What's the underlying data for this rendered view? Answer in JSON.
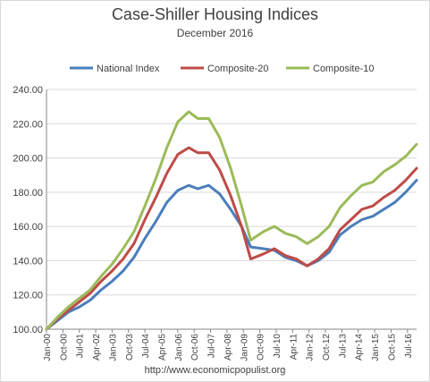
{
  "chart_data": {
    "type": "line",
    "title": "Case-Shiller Housing Indices",
    "subtitle": "December  2016",
    "source": "http://www.economicpopulist.org",
    "xlabel": "",
    "ylabel": "",
    "ylim": [
      100,
      240
    ],
    "yticks": [
      "100.00",
      "120.00",
      "140.00",
      "160.00",
      "180.00",
      "200.00",
      "220.00",
      "240.00"
    ],
    "xticks": [
      "Jan-00",
      "Oct-00",
      "Jul-01",
      "Apr-02",
      "Jan-03",
      "Oct-03",
      "Jul-04",
      "Apr-05",
      "Jan-06",
      "Oct-06",
      "Jul-07",
      "Apr-08",
      "Jan-09",
      "Oct-09",
      "Jul-10",
      "Apr-11",
      "Jan-12",
      "Oct-12",
      "Jul-13",
      "Apr-14",
      "Jan-15",
      "Oct-15",
      "Jul-16"
    ],
    "x_start": "Jan-00",
    "x_end": "Dec-16",
    "grid": true,
    "legend_position": "top",
    "series": [
      {
        "name": "National Index",
        "color": "#4a7ebb",
        "points": [
          [
            "Jan-00",
            100
          ],
          [
            "Jul-00",
            105
          ],
          [
            "Jan-01",
            110
          ],
          [
            "Jul-01",
            113
          ],
          [
            "Jan-02",
            117
          ],
          [
            "Jul-02",
            123
          ],
          [
            "Jan-03",
            128
          ],
          [
            "Jul-03",
            134
          ],
          [
            "Jan-04",
            142
          ],
          [
            "Jul-04",
            153
          ],
          [
            "Jan-05",
            163
          ],
          [
            "Jul-05",
            174
          ],
          [
            "Jan-06",
            181
          ],
          [
            "Jul-06",
            184
          ],
          [
            "Dec-06",
            182
          ],
          [
            "Jun-07",
            184
          ],
          [
            "Dec-07",
            179
          ],
          [
            "Jun-08",
            170
          ],
          [
            "Dec-08",
            160
          ],
          [
            "May-09",
            148
          ],
          [
            "Dec-09",
            147
          ],
          [
            "Jun-10",
            146
          ],
          [
            "Dec-10",
            142
          ],
          [
            "Jun-11",
            140
          ],
          [
            "Dec-11",
            137
          ],
          [
            "Jun-12",
            140
          ],
          [
            "Dec-12",
            145
          ],
          [
            "Jun-13",
            155
          ],
          [
            "Dec-13",
            160
          ],
          [
            "Jun-14",
            164
          ],
          [
            "Dec-14",
            166
          ],
          [
            "Jun-15",
            170
          ],
          [
            "Dec-15",
            174
          ],
          [
            "Jun-16",
            180
          ],
          [
            "Dec-16",
            187
          ]
        ]
      },
      {
        "name": "Composite-20",
        "color": "#be4b48",
        "points": [
          [
            "Jan-00",
            100
          ],
          [
            "Jul-00",
            106
          ],
          [
            "Jan-01",
            111
          ],
          [
            "Jul-01",
            116
          ],
          [
            "Jan-02",
            121
          ],
          [
            "Jul-02",
            128
          ],
          [
            "Jan-03",
            134
          ],
          [
            "Jul-03",
            141
          ],
          [
            "Jan-04",
            150
          ],
          [
            "Jul-04",
            164
          ],
          [
            "Jan-05",
            177
          ],
          [
            "Jul-05",
            191
          ],
          [
            "Jan-06",
            202
          ],
          [
            "Jul-06",
            206
          ],
          [
            "Dec-06",
            203
          ],
          [
            "Jun-07",
            203
          ],
          [
            "Dec-07",
            193
          ],
          [
            "Jun-08",
            178
          ],
          [
            "Dec-08",
            160
          ],
          [
            "May-09",
            141
          ],
          [
            "Dec-09",
            144
          ],
          [
            "Jun-10",
            147
          ],
          [
            "Dec-10",
            143
          ],
          [
            "Jun-11",
            141
          ],
          [
            "Dec-11",
            137
          ],
          [
            "Jun-12",
            141
          ],
          [
            "Dec-12",
            147
          ],
          [
            "Jun-13",
            158
          ],
          [
            "Dec-13",
            164
          ],
          [
            "Jun-14",
            170
          ],
          [
            "Dec-14",
            172
          ],
          [
            "Jun-15",
            177
          ],
          [
            "Dec-15",
            181
          ],
          [
            "Jun-16",
            187
          ],
          [
            "Dec-16",
            194
          ]
        ]
      },
      {
        "name": "Composite-10",
        "color": "#9bbb59",
        "points": [
          [
            "Jan-00",
            100
          ],
          [
            "Jul-00",
            107
          ],
          [
            "Jan-01",
            113
          ],
          [
            "Jul-01",
            118
          ],
          [
            "Jan-02",
            123
          ],
          [
            "Jul-02",
            131
          ],
          [
            "Jan-03",
            138
          ],
          [
            "Jul-03",
            147
          ],
          [
            "Jan-04",
            157
          ],
          [
            "Jul-04",
            172
          ],
          [
            "Jan-05",
            188
          ],
          [
            "Jul-05",
            206
          ],
          [
            "Jan-06",
            221
          ],
          [
            "Jul-06",
            227
          ],
          [
            "Dec-06",
            223
          ],
          [
            "Jun-07",
            223
          ],
          [
            "Dec-07",
            212
          ],
          [
            "Jun-08",
            194
          ],
          [
            "Dec-08",
            172
          ],
          [
            "May-09",
            152
          ],
          [
            "Dec-09",
            157
          ],
          [
            "Jun-10",
            160
          ],
          [
            "Dec-10",
            156
          ],
          [
            "Jun-11",
            154
          ],
          [
            "Dec-11",
            150
          ],
          [
            "Jun-12",
            154
          ],
          [
            "Dec-12",
            160
          ],
          [
            "Jun-13",
            171
          ],
          [
            "Dec-13",
            178
          ],
          [
            "Jun-14",
            184
          ],
          [
            "Dec-14",
            186
          ],
          [
            "Jun-15",
            192
          ],
          [
            "Dec-15",
            196
          ],
          [
            "Jun-16",
            201
          ],
          [
            "Dec-16",
            208
          ]
        ]
      }
    ]
  }
}
